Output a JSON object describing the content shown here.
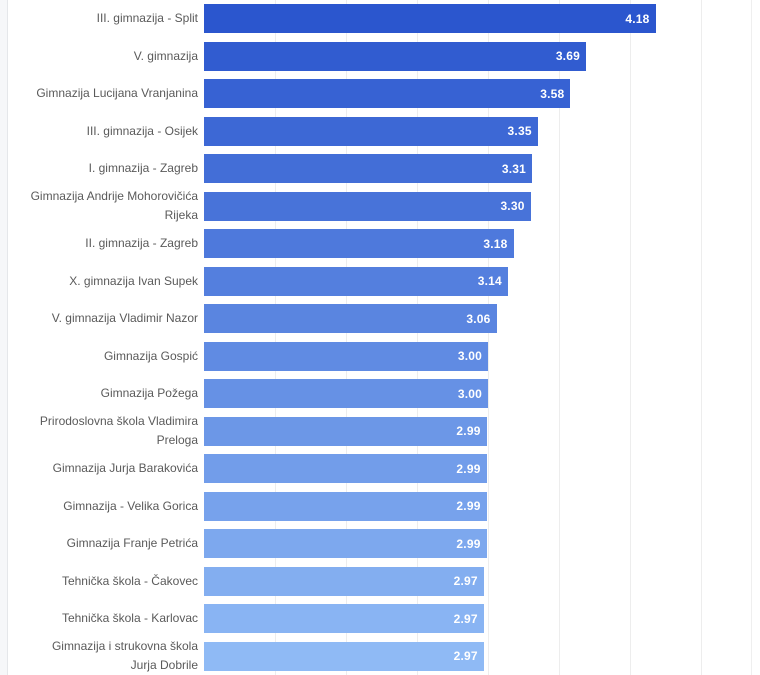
{
  "chart_data": {
    "type": "bar",
    "orientation": "horizontal",
    "categories": [
      "III. gimnazija - Split",
      "V. gimnazija",
      "Gimnazija Lucijana Vranjanina",
      "III. gimnazija - Osijek",
      "I. gimnazija - Zagreb",
      "Gimnazija Andrije Mohorovičića\nRijeka",
      "II. gimnazija - Zagreb",
      "X. gimnazija Ivan Supek",
      "V. gimnazija Vladimir Nazor",
      "Gimnazija Gospić",
      "Gimnazija Požega",
      "Prirodoslovna škola Vladimira\nPreloga",
      "Gimnazija Jurja Barakovića",
      "Gimnazija - Velika Gorica",
      "Gimnazija Franje Petrića",
      "Tehnička škola - Čakovec",
      "Tehnička škola - Karlovac",
      "Gimnazija i strukovna škola\nJurja Dobrile"
    ],
    "values": [
      4.18,
      3.69,
      3.58,
      3.35,
      3.31,
      3.3,
      3.18,
      3.14,
      3.06,
      3.0,
      3.0,
      2.99,
      2.99,
      2.99,
      2.99,
      2.97,
      2.97,
      2.97
    ],
    "value_labels": [
      "4.18",
      "3.69",
      "3.58",
      "3.35",
      "3.31",
      "3.30",
      "3.18",
      "3.14",
      "3.06",
      "3.00",
      "3.00",
      "2.99",
      "2.99",
      "2.99",
      "2.99",
      "2.97",
      "2.97",
      "2.97"
    ],
    "title": "",
    "xlabel": "",
    "ylabel": "",
    "xlim": [
      1.0,
      5.0
    ],
    "gridline_values": [
      1.5,
      2.0,
      2.5,
      3.0,
      3.5,
      4.0,
      4.5
    ],
    "grid": true,
    "legend": false
  },
  "style": {
    "bar_color_start": "#2B56CE",
    "bar_color_end": "#8FBAF5",
    "category_label_color": "#5a5a5a",
    "value_label_color": "#ffffff",
    "gridline_color": "#ededed",
    "background_color": "#ffffff",
    "page_strip_color": "#f6f7f9"
  }
}
